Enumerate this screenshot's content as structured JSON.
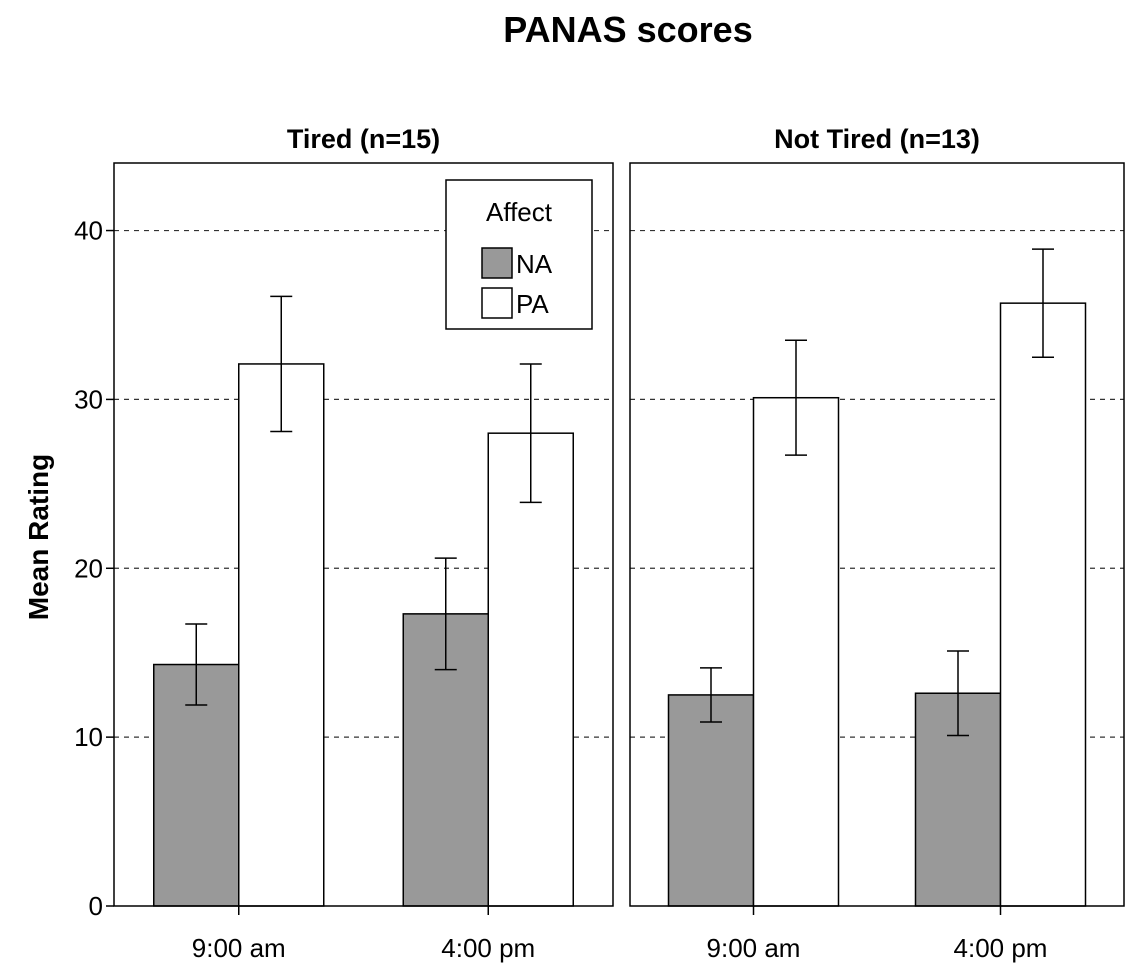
{
  "chart_data": {
    "type": "bar",
    "title": "PANAS scores",
    "ylabel": "Mean Rating",
    "xlabel": "",
    "ylim": [
      0,
      44
    ],
    "yticks": [
      0,
      10,
      20,
      30,
      40
    ],
    "grid": "dashed horizontal",
    "categories": [
      "9:00 am",
      "4:00 pm"
    ],
    "legend": {
      "title": "Affect",
      "placement": "top-right of first panel",
      "entries": [
        {
          "name": "NA",
          "color": "#999999"
        },
        {
          "name": "PA",
          "color": "#ffffff"
        }
      ]
    },
    "panels": [
      {
        "title": "Tired (n=15)",
        "series": [
          {
            "name": "NA",
            "color": "#999999",
            "values": [
              14.3,
              17.3
            ],
            "error_low": [
              11.9,
              14.0
            ],
            "error_high": [
              16.7,
              20.6
            ]
          },
          {
            "name": "PA",
            "color": "#ffffff",
            "values": [
              32.1,
              28.0
            ],
            "error_low": [
              28.1,
              23.9
            ],
            "error_high": [
              36.1,
              32.1
            ]
          }
        ]
      },
      {
        "title": "Not Tired (n=13)",
        "series": [
          {
            "name": "NA",
            "color": "#999999",
            "values": [
              12.5,
              12.6
            ],
            "error_low": [
              10.9,
              10.1
            ],
            "error_high": [
              14.1,
              15.1
            ]
          },
          {
            "name": "PA",
            "color": "#ffffff",
            "values": [
              30.1,
              35.7
            ],
            "error_low": [
              26.7,
              32.5
            ],
            "error_high": [
              33.5,
              38.9
            ]
          }
        ]
      }
    ]
  }
}
